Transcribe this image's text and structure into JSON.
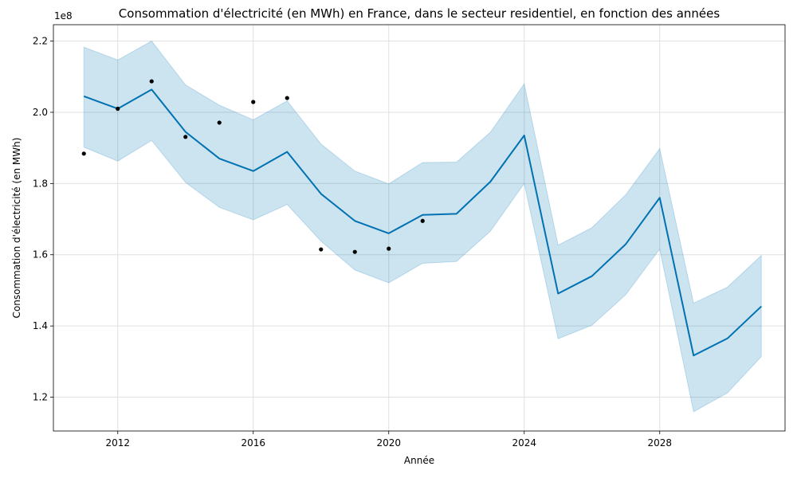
{
  "chart_data": {
    "type": "line",
    "title": "Consommation d'électricité (en MWh) en France, dans le secteur residentiel, en fonction des années",
    "xlabel": "Année",
    "ylabel": "Consommation d'électricité (en MWh)",
    "y_multiplier_label": "1e8",
    "xlim": [
      2010.1,
      2031.7
    ],
    "ylim": [
      1.105,
      2.246
    ],
    "grid": true,
    "x_ticks": [
      2012,
      2016,
      2020,
      2024,
      2028
    ],
    "x_tick_labels": [
      "2012",
      "2016",
      "2020",
      "2024",
      "2028"
    ],
    "y_ticks": [
      1.2,
      1.4,
      1.6,
      1.8,
      2.0,
      2.2
    ],
    "y_tick_labels": [
      "1.2",
      "1.4",
      "1.6",
      "1.8",
      "2.0",
      "2.2"
    ],
    "colors": {
      "forecast": "#0072b2",
      "interval": "#0072b2",
      "observed": "#000000",
      "grid": "#e0e0e0"
    },
    "series": [
      {
        "kind": "observed",
        "x": [
          2011,
          2012,
          2013,
          2014,
          2015,
          2016,
          2017,
          2018,
          2019,
          2020,
          2021
        ],
        "y": [
          1.884,
          2.01,
          2.087,
          1.931,
          1.971,
          2.029,
          2.04,
          1.615,
          1.608,
          1.617,
          1.695
        ]
      },
      {
        "kind": "forecast",
        "x": [
          2011,
          2012,
          2013,
          2014,
          2015,
          2016,
          2017,
          2018,
          2019,
          2020,
          2021,
          2022,
          2023,
          2024,
          2025,
          2026,
          2027,
          2028,
          2029,
          2030,
          2031
        ],
        "y": [
          2.045,
          2.01,
          2.064,
          1.945,
          1.87,
          1.835,
          1.889,
          1.771,
          1.695,
          1.66,
          1.712,
          1.715,
          1.805,
          1.935,
          1.491,
          1.54,
          1.63,
          1.76,
          1.317,
          1.365,
          1.455
        ],
        "lower": [
          1.902,
          1.863,
          1.921,
          1.803,
          1.733,
          1.698,
          1.741,
          1.638,
          1.557,
          1.521,
          1.576,
          1.581,
          1.666,
          1.8,
          1.364,
          1.402,
          1.488,
          1.616,
          1.159,
          1.212,
          1.314
        ],
        "upper": [
          2.183,
          2.147,
          2.2,
          2.077,
          2.02,
          1.979,
          2.032,
          1.911,
          1.835,
          1.799,
          1.859,
          1.86,
          1.944,
          2.08,
          1.627,
          1.676,
          1.769,
          1.898,
          1.464,
          1.509,
          1.598
        ]
      }
    ]
  }
}
